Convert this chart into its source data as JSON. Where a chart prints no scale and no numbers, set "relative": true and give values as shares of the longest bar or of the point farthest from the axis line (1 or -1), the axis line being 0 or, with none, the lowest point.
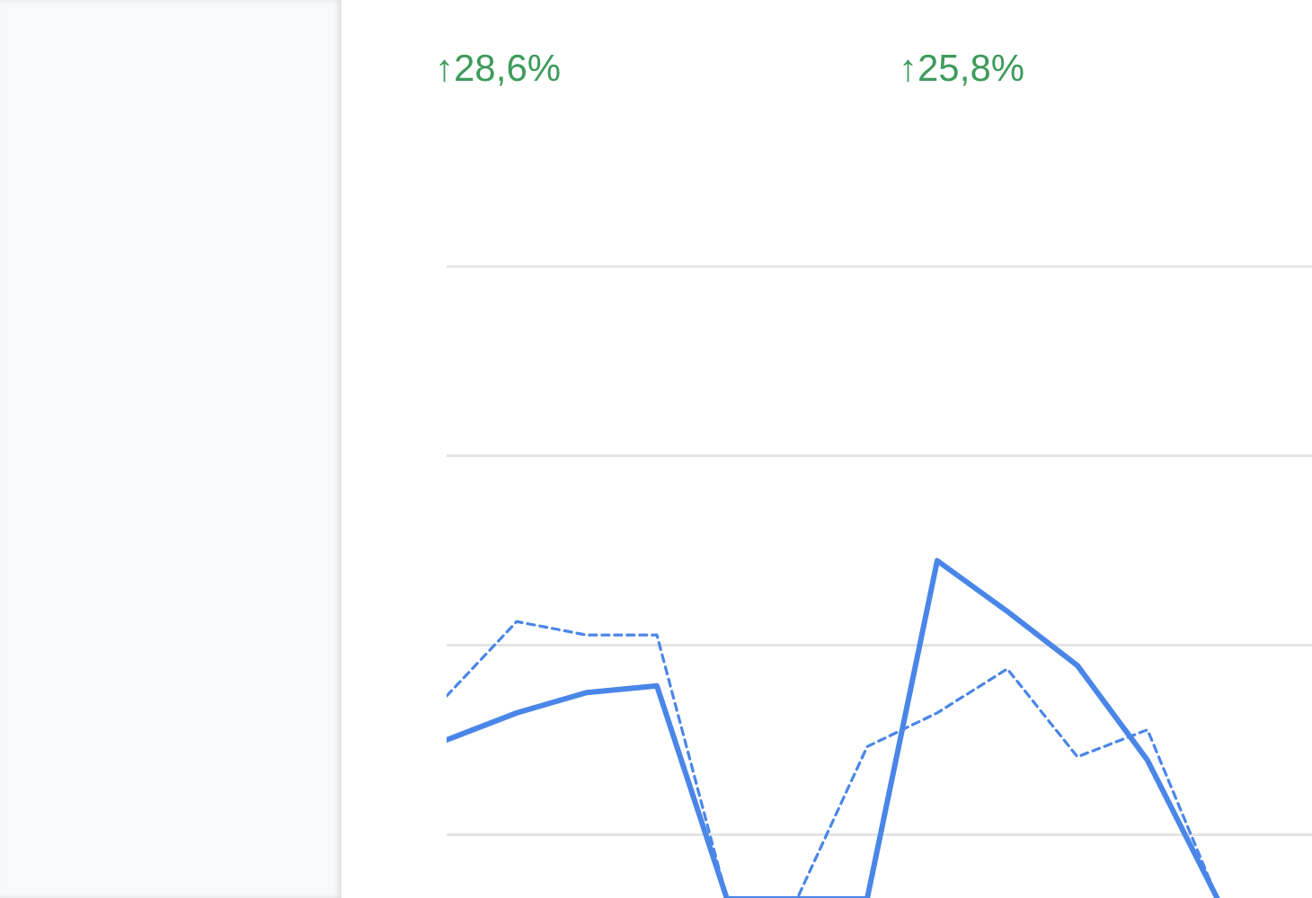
{
  "chart_data": {
    "type": "line",
    "relative": true,
    "tick_labels": false,
    "categories": [
      null,
      null,
      null,
      null,
      null,
      null,
      null,
      null,
      null,
      null,
      null,
      null
    ],
    "series": [
      {
        "color": "#4a86e8",
        "line_style": "solid",
        "values": [
          0.47,
          0.55,
          0.61,
          0.63,
          0,
          0,
          0,
          1,
          0.85,
          0.69,
          0.41,
          0
        ]
      },
      {
        "color": "#4a86e8",
        "line_style": "dashed",
        "values": [
          0.6,
          0.82,
          0.78,
          0.78,
          0,
          0,
          0.45,
          0.55,
          0.68,
          0.42,
          0.5,
          0
        ]
      }
    ],
    "ref_lines": [
      {
        "axis": "y",
        "value": 0.19,
        "color": "#e4e4e4"
      },
      {
        "axis": "y",
        "value": 0.75,
        "color": "#e4e4e4"
      },
      {
        "axis": "y",
        "value": 1.31,
        "color": "#e4e4e4"
      },
      {
        "axis": "y",
        "value": 1.87,
        "color": "#e4e4e4"
      }
    ],
    "annotations": [
      "↑28,6%",
      "↑25,8%"
    ]
  }
}
